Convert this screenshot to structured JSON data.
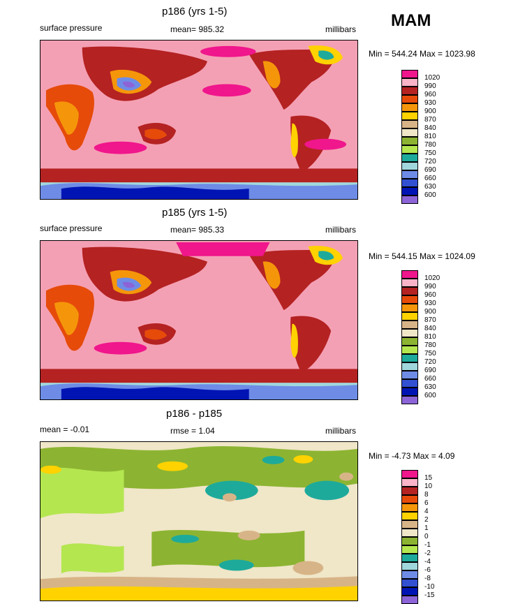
{
  "season": "MAM",
  "panels": [
    {
      "title": "p186 (yrs 1-5)",
      "left_label": "surface pressure",
      "center_label": "mean= 985.32",
      "right_label": "millibars",
      "minmax": "Min = 544.24 Max = 1023.98",
      "colorbar": [
        "1020",
        "990",
        "960",
        "930",
        "900",
        "870",
        "840",
        "810",
        "780",
        "750",
        "720",
        "690",
        "660",
        "630",
        "600"
      ]
    },
    {
      "title": "p185 (yrs 1-5)",
      "left_label": "surface pressure",
      "center_label": "mean= 985.33",
      "right_label": "millibars",
      "minmax": "Min = 544.15 Max = 1024.09",
      "colorbar": [
        "1020",
        "990",
        "960",
        "930",
        "900",
        "870",
        "840",
        "810",
        "780",
        "750",
        "720",
        "690",
        "660",
        "630",
        "600"
      ]
    },
    {
      "title": "p186 - p185",
      "left_label": "mean =  -0.01",
      "center_label": "rmse =   1.04",
      "right_label": "millibars",
      "minmax": "Min =  -4.73 Max =   4.09",
      "colorbar": [
        "15",
        "10",
        "8",
        "6",
        "4",
        "2",
        "1",
        "0",
        "-1",
        "-2",
        "-4",
        "-6",
        "-8",
        "-10",
        "-15"
      ]
    }
  ],
  "palette": [
    "#f0168c",
    "#f4a0b4",
    "#b42222",
    "#e64b0a",
    "#f5960a",
    "#ffd200",
    "#d7b487",
    "#f0e6c8",
    "#8cb432",
    "#b4e650",
    "#1eaa9b",
    "#a0d7dc",
    "#6e8ce6",
    "#3250d2",
    "#0014b4",
    "#8c64d7"
  ],
  "colorbar_colors": [
    "#f0168c",
    "#fab4c8",
    "#b42222",
    "#e64b0a",
    "#f5960a",
    "#ffd200",
    "#d7b487",
    "#f0e6c8",
    "#8cb432",
    "#b4e650",
    "#1eaa9b",
    "#a0d7dc",
    "#6e8ce6",
    "#3250d2",
    "#0014b4",
    "#8c64d7"
  ],
  "diff_colorbar_colors": [
    "#f0168c",
    "#fab4c8",
    "#b42222",
    "#e64b0a",
    "#f5960a",
    "#ffd200",
    "#d7b487",
    "#f0e6c8",
    "#8cb432",
    "#b4e650",
    "#1eaa9b",
    "#a0d7dc",
    "#6e8ce6",
    "#3250d2",
    "#0014b4",
    "#8c64d7"
  ]
}
